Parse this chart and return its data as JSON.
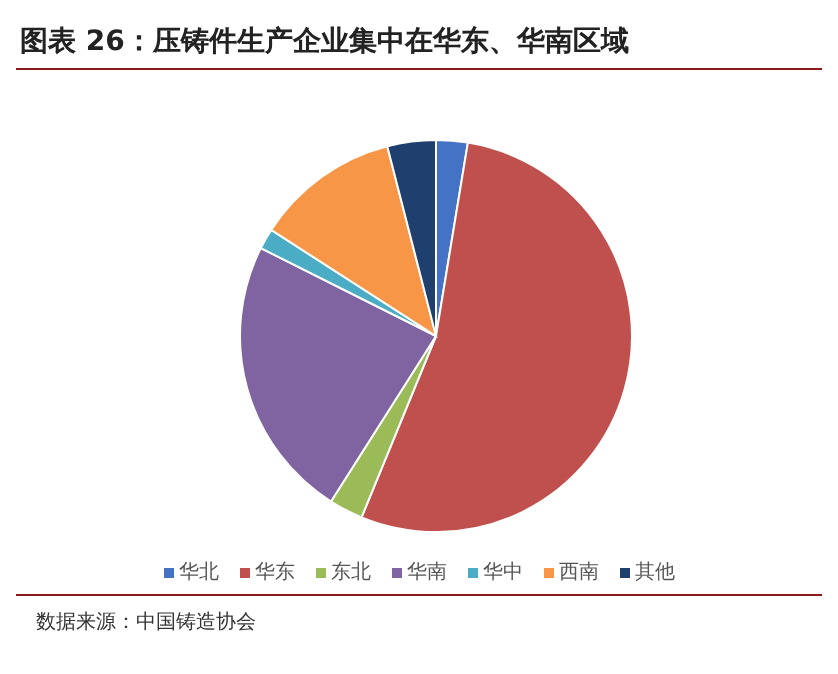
{
  "chart_data": {
    "type": "pie",
    "title": "图表 26：压铸件生产企业集中在华东、华南区域",
    "categories": [
      "华北",
      "华东",
      "东北",
      "华南",
      "华中",
      "西南",
      "其他"
    ],
    "values": [
      2.6,
      53.6,
      2.8,
      23.4,
      1.7,
      11.9,
      4.0
    ],
    "colors": [
      "#4472c4",
      "#c0504d",
      "#9bbb59",
      "#8064a2",
      "#4bacc6",
      "#f79646",
      "#1f3f6e"
    ],
    "legend": "bottom",
    "annotations": [
      "数据来源：中国铸造协会"
    ]
  }
}
